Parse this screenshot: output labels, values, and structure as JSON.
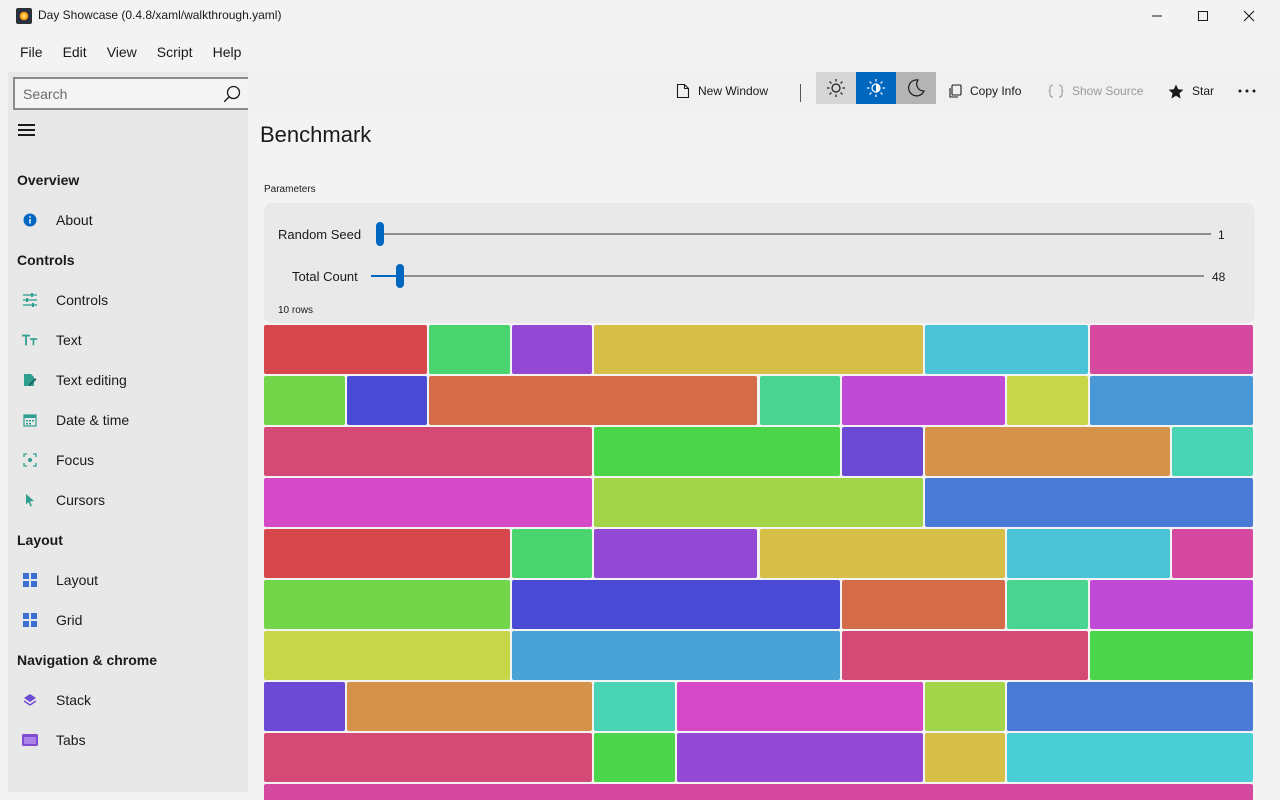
{
  "window": {
    "title": "Day Showcase (0.4.8/xaml/walkthrough.yaml)",
    "controls": [
      "minimize-icon",
      "maximize-icon",
      "close-icon"
    ]
  },
  "menu": [
    "File",
    "Edit",
    "View",
    "Script",
    "Help"
  ],
  "search": {
    "placeholder": "Search"
  },
  "sidebar": {
    "sections": [
      {
        "title": "Overview",
        "items": [
          {
            "label": "About",
            "icon": "info-icon"
          }
        ]
      },
      {
        "title": "Controls",
        "items": [
          {
            "label": "Controls",
            "icon": "sliders-icon"
          },
          {
            "label": "Text",
            "icon": "text-size-icon"
          },
          {
            "label": "Text editing",
            "icon": "edit-icon"
          },
          {
            "label": "Date & time",
            "icon": "calendar-icon"
          },
          {
            "label": "Focus",
            "icon": "focus-icon"
          },
          {
            "label": "Cursors",
            "icon": "cursor-icon"
          }
        ]
      },
      {
        "title": "Layout",
        "items": [
          {
            "label": "Layout",
            "icon": "layout-icon"
          },
          {
            "label": "Grid",
            "icon": "grid-icon"
          }
        ]
      },
      {
        "title": "Navigation & chrome",
        "items": [
          {
            "label": "Stack",
            "icon": "stack-icon"
          },
          {
            "label": "Tabs",
            "icon": "tabs-icon"
          }
        ]
      }
    ]
  },
  "toolbar": {
    "new_window": "New Window",
    "copy_info": "Copy Info",
    "show_source": "Show Source",
    "star": "Star",
    "theme_selected": "auto",
    "theme_icons": [
      "sun-icon",
      "contrast-icon",
      "moon-icon"
    ]
  },
  "page": {
    "title": "Benchmark",
    "params_label": "Parameters",
    "random_seed": {
      "label": "Random Seed",
      "value": "1",
      "fraction": 0.0
    },
    "total_count": {
      "label": "Total Count",
      "value": "48",
      "fraction": 0.03
    },
    "rows_label": "10 rows"
  },
  "colors": {
    "accent": "#0067c0",
    "blocks": {
      "red": "#d5474b",
      "green": "#4ad46e",
      "purple": "#9449d5",
      "mustard": "#d5bf47",
      "cyan": "#49c3d5",
      "magenta": "#d549a0",
      "lime": "#72d54a",
      "indigo": "#4a4ad5",
      "orange": "#d56c49",
      "mint": "#49d591",
      "violet": "#c049d5",
      "yellowgreen": "#c7d549",
      "steelblue": "#4998d5",
      "rose": "#d54977",
      "brightgreen": "#4ad54b",
      "deeppurple": "#6c49d5",
      "amber": "#d5924a",
      "aqua": "#49d5b4",
      "pink": "#d549c7",
      "olive": "#a2d54a",
      "blue": "#4a7ad5",
      "sky": "#49a2d5",
      "teal": "#49cfd5"
    }
  },
  "rows": [
    [
      {
        "c": "red",
        "w": 2
      },
      {
        "c": "green",
        "w": 1
      },
      {
        "c": "purple",
        "w": 1
      },
      {
        "c": "mustard",
        "w": 4
      },
      {
        "c": "cyan",
        "w": 2
      },
      {
        "c": "magenta",
        "w": 2
      }
    ],
    [
      {
        "c": "lime",
        "w": 1
      },
      {
        "c": "indigo",
        "w": 1
      },
      {
        "c": "orange",
        "w": 4
      },
      {
        "c": "mint",
        "w": 1
      },
      {
        "c": "violet",
        "w": 2
      },
      {
        "c": "yellowgreen",
        "w": 1
      },
      {
        "c": "steelblue",
        "w": 2
      }
    ],
    [
      {
        "c": "rose",
        "w": 4
      },
      {
        "c": "brightgreen",
        "w": 3
      },
      {
        "c": "deeppurple",
        "w": 1
      },
      {
        "c": "amber",
        "w": 3
      },
      {
        "c": "aqua",
        "w": 1
      }
    ],
    [
      {
        "c": "pink",
        "w": 4
      },
      {
        "c": "olive",
        "w": 4
      },
      {
        "c": "blue",
        "w": 4
      }
    ],
    [
      {
        "c": "red",
        "w": 3
      },
      {
        "c": "green",
        "w": 1
      },
      {
        "c": "purple",
        "w": 2
      },
      {
        "c": "mustard",
        "w": 3
      },
      {
        "c": "cyan",
        "w": 2
      },
      {
        "c": "magenta",
        "w": 1
      }
    ],
    [
      {
        "c": "lime",
        "w": 3
      },
      {
        "c": "indigo",
        "w": 4
      },
      {
        "c": "orange",
        "w": 2
      },
      {
        "c": "mint",
        "w": 1
      },
      {
        "c": "violet",
        "w": 2
      }
    ],
    [
      {
        "c": "yellowgreen",
        "w": 3
      },
      {
        "c": "sky",
        "w": 4
      },
      {
        "c": "rose",
        "w": 3
      },
      {
        "c": "brightgreen",
        "w": 2
      }
    ],
    [
      {
        "c": "deeppurple",
        "w": 1
      },
      {
        "c": "amber",
        "w": 3
      },
      {
        "c": "aqua",
        "w": 1
      },
      {
        "c": "pink",
        "w": 3
      },
      {
        "c": "olive",
        "w": 1
      },
      {
        "c": "blue",
        "w": 3
      }
    ],
    [
      {
        "c": "rose",
        "w": 4
      },
      {
        "c": "brightgreen",
        "w": 1
      },
      {
        "c": "purple",
        "w": 3
      },
      {
        "c": "mustard",
        "w": 1
      },
      {
        "c": "teal",
        "w": 3
      }
    ],
    [
      {
        "c": "magenta",
        "w": 12
      }
    ]
  ]
}
